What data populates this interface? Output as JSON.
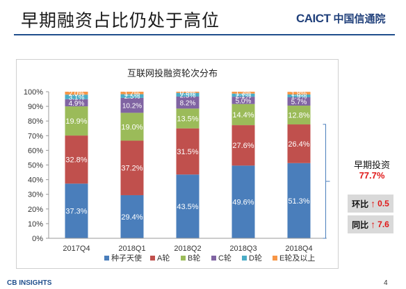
{
  "page": {
    "title": "早期融资占比仍处于高位",
    "logo_en": "CAICT",
    "logo_cn": "中国信通院",
    "footer_logo": "CB INSIGHTS",
    "page_number": "4",
    "watermark": "CAICT 中国信通院"
  },
  "callout": {
    "label": "早期投资",
    "value": "77.7%",
    "metrics": [
      {
        "label": "环比",
        "arrow": "↑",
        "value": "0.5"
      },
      {
        "label": "同比",
        "arrow": "↑",
        "value": "7.6"
      }
    ]
  },
  "chart_data": {
    "type": "bar",
    "stacked": true,
    "title": "互联网投融资轮次分布",
    "categories": [
      "2017Q4",
      "2018Q1",
      "2018Q2",
      "2018Q3",
      "2018Q4"
    ],
    "yticks": [
      "0%",
      "10%",
      "20%",
      "30%",
      "40%",
      "50%",
      "60%",
      "70%",
      "80%",
      "90%",
      "100%"
    ],
    "ylim": [
      0,
      100
    ],
    "grid": false,
    "legend_position": "bottom",
    "series": [
      {
        "name": "种子天使",
        "color": "#4a7ebb",
        "values": [
          37.3,
          29.4,
          43.5,
          49.6,
          51.3
        ],
        "labels": [
          "37.3%",
          "29.4%",
          "43.5%",
          "49.6%",
          "51.3%"
        ]
      },
      {
        "name": "A轮",
        "color": "#c0504d",
        "values": [
          32.8,
          37.2,
          31.5,
          27.6,
          26.4
        ],
        "labels": [
          "32.8%",
          "37.2%",
          "31.5%",
          "27.6%",
          "26.4%"
        ]
      },
      {
        "name": "B轮",
        "color": "#9bbb59",
        "values": [
          19.9,
          19.0,
          13.5,
          14.4,
          12.8
        ],
        "labels": [
          "19.9%",
          "19.0%",
          "13.5%",
          "14.4%",
          "12.8%"
        ]
      },
      {
        "name": "C轮",
        "color": "#8064a2",
        "values": [
          4.9,
          10.2,
          8.2,
          5.0,
          5.7
        ],
        "labels": [
          "4.9%",
          "10.2%",
          "8.2%",
          "5.0%",
          "5.7%"
        ]
      },
      {
        "name": "D轮",
        "color": "#4bacc6",
        "values": [
          3.1,
          2.5,
          2.5,
          2.1,
          1.9
        ],
        "labels": [
          "3.1%",
          "2.5%",
          "2.5%",
          "2.1%",
          "1.9%"
        ]
      },
      {
        "name": "E轮及以上",
        "color": "#f79646",
        "values": [
          2.0,
          1.7,
          0.8,
          1.3,
          1.8
        ],
        "labels": [
          "2.0%",
          "1.7%",
          "0.8%",
          "1.3%",
          "1.8%"
        ]
      }
    ]
  }
}
